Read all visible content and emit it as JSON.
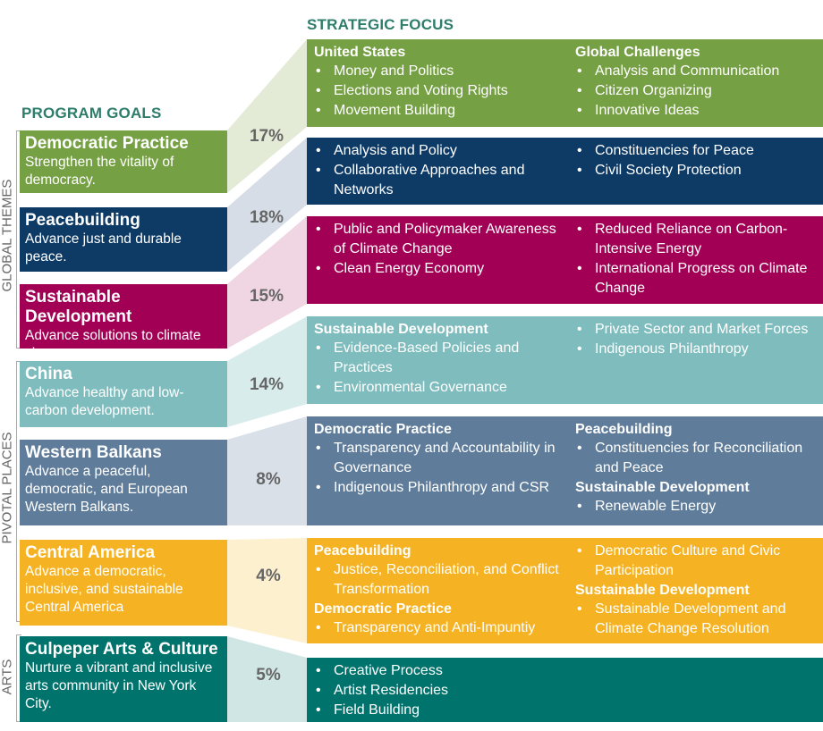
{
  "headers": {
    "strategic_focus": "STRATEGIC FOCUS",
    "program_goals": "PROGRAM GOALS"
  },
  "side_labels": {
    "global_themes": "GLOBAL THEMES",
    "pivotal_places": "PIVOTAL PLACES",
    "arts": "ARTS"
  },
  "colors": {
    "democratic_practice": "#76a044",
    "peacebuilding": "#0d3b66",
    "sustainable_development": "#a10054",
    "china": "#7fbcbd",
    "western_balkans": "#5f7d9b",
    "central_america": "#f5b323",
    "arts": "#00736d",
    "header": "#2e7d6b"
  },
  "goals": [
    {
      "title": "Democratic Practice",
      "desc": "Strengthen the vitality of democracy.",
      "pct": "17%"
    },
    {
      "title": "Peacebuilding",
      "desc": "Advance just and durable peace.",
      "pct": "18%"
    },
    {
      "title": "Sustainable Development",
      "desc": "Advance solutions to climate change.",
      "pct": "15%"
    },
    {
      "title": "China",
      "desc": "Advance healthy and low-carbon development.",
      "pct": "14%"
    },
    {
      "title": "Western Balkans",
      "desc": "Advance a peaceful, democratic, and European Western Balkans.",
      "pct": "8%"
    },
    {
      "title": "Central America",
      "desc": "Advance a democratic, inclusive, and sustainable Central America",
      "pct": "4%"
    },
    {
      "title": "Culpeper Arts & Culture",
      "desc": "Nurture a vibrant and inclusive arts community in New York City.",
      "pct": "5%"
    }
  ],
  "focus": [
    {
      "left": [
        {
          "heading": "United States",
          "items": [
            "Money and Politics",
            "Elections and Voting Rights",
            "Movement Building"
          ]
        }
      ],
      "right": [
        {
          "heading": "Global Challenges",
          "items": [
            "Analysis and Communication",
            "Citizen Organizing",
            "Innovative Ideas"
          ]
        }
      ]
    },
    {
      "left": [
        {
          "heading": "",
          "items": [
            "Analysis and Policy",
            "Collaborative Approaches and Networks"
          ]
        }
      ],
      "right": [
        {
          "heading": "",
          "items": [
            "Constituencies for Peace",
            "Civil Society Protection"
          ]
        }
      ]
    },
    {
      "left": [
        {
          "heading": "",
          "items": [
            "Public and Policymaker Awareness of Climate Change",
            "Clean Energy Economy"
          ]
        }
      ],
      "right": [
        {
          "heading": "",
          "items": [
            "Reduced Reliance on Carbon-Intensive Energy",
            "International Progress on Climate Change"
          ]
        }
      ]
    },
    {
      "left": [
        {
          "heading": "Sustainable Development",
          "items": [
            "Evidence-Based Policies and Practices",
            "Environmental Governance"
          ]
        }
      ],
      "right": [
        {
          "heading": "",
          "items": [
            "Private Sector and Market Forces",
            "Indigenous Philanthropy"
          ]
        }
      ]
    },
    {
      "left": [
        {
          "heading": "Democratic Practice",
          "items": [
            "Transparency and Accountability in Governance",
            "Indigenous Philanthropy and CSR"
          ]
        }
      ],
      "right": [
        {
          "heading": "Peacebuilding",
          "items": [
            "Constituencies for Reconciliation and Peace"
          ]
        },
        {
          "heading": "Sustainable Development",
          "items": [
            "Renewable Energy"
          ]
        }
      ]
    },
    {
      "left": [
        {
          "heading": "Peacebuilding",
          "items": [
            "Justice, Reconciliation, and Conflict Transformation"
          ]
        },
        {
          "heading": "Democratic Practice",
          "items": [
            "Transparency and Anti-Impuntiy"
          ]
        }
      ],
      "right": [
        {
          "heading": "",
          "items": [
            "Democratic Culture and Civic Participation"
          ]
        },
        {
          "heading": "Sustainable Development",
          "items": [
            "Sustainable Development and Climate Change Resolution"
          ]
        }
      ]
    },
    {
      "left": [
        {
          "heading": "",
          "items": [
            "Creative Process",
            "Artist Residencies",
            "Field Building"
          ]
        }
      ],
      "right": []
    }
  ]
}
